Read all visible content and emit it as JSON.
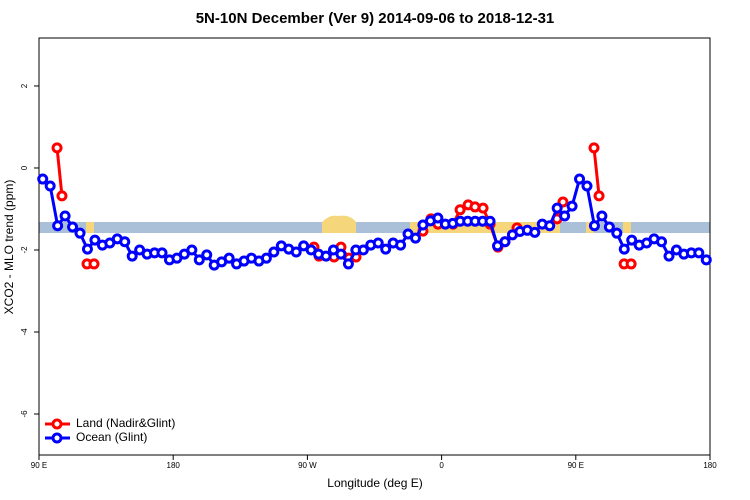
{
  "chart_data": {
    "type": "line",
    "title": "5N-10N December (Ver 9)   2014-09-06 to 2018-12-31",
    "x_label": "Longitude (deg E)",
    "y_label": "XCO2 - MLO trend (ppm)",
    "xlim": [
      90,
      540
    ],
    "xticks": [
      {
        "value": 90,
        "label": "90 E"
      },
      180,
      {
        "value": 270,
        "label": "90 W"
      },
      {
        "value": 360,
        "label": "0"
      },
      {
        "value": 450,
        "label": "90 E"
      },
      {
        "value": 540,
        "label": "180"
      }
    ],
    "ylim": [
      -7,
      3.17
    ],
    "yticks": [
      2,
      0,
      -2,
      -4,
      -6
    ],
    "legend": "bottom-left",
    "series": [
      {
        "name": "Land (Nadir&Glint)",
        "color": "#ff0000",
        "x": [
          102.1,
          105.4,
          null,
          122.2,
          126.9,
          null,
          274.4,
          277.8,
          287.9,
          292.5,
          297.9,
          302.6,
          null,
          347.5,
          352.9,
          357.6,
          367.7,
          372.4,
          377.8,
          382.4,
          387.8,
          392.5,
          397.8,
          402.5,
          410.6,
          null,
          437.4,
          441.4,
          null,
          462.2,
          465.6,
          null,
          482.4,
          487.1
        ],
        "values": [
          0.49,
          -0.68,
          null,
          -2.34,
          -2.34,
          null,
          -1.93,
          -2.15,
          -2.17,
          -1.93,
          -2.2,
          -2.17,
          null,
          -1.54,
          -1.24,
          -1.37,
          -1.37,
          -1.02,
          -0.9,
          -0.95,
          -0.98,
          -1.37,
          -1.93,
          -1.8,
          -1.46,
          null,
          -1.24,
          -0.83,
          null,
          0.49,
          -0.68,
          null,
          -2.34,
          -2.34
        ]
      },
      {
        "name": "Ocean (Glint)",
        "color": "#0000ff",
        "x": [
          92.5,
          97.5,
          102.5,
          107.5,
          112.5,
          117.5,
          122.5,
          127.5,
          132.5,
          137.5,
          142.5,
          147.5,
          152.5,
          157.5,
          162.5,
          167.5,
          172.5,
          177.5,
          182.5,
          187.5,
          192.5,
          197.5,
          202.5,
          207.5,
          212.5,
          217.5,
          222.5,
          227.5,
          232.5,
          237.5,
          242.5,
          247.5,
          252.5,
          257.5,
          262.5,
          267.5,
          272.5,
          277.5,
          282.5,
          287.5,
          292.5,
          297.5,
          302.5,
          307.5,
          312.5,
          317.5,
          322.5,
          327.5,
          332.5,
          337.5,
          342.5,
          347.5,
          352.5,
          357.5,
          362.5,
          367.5,
          372.5,
          377.5,
          382.5,
          387.5,
          392.5,
          397.5,
          402.5,
          407.5,
          412.5,
          417.5,
          422.5,
          427.5,
          432.5,
          437.5,
          442.5,
          447.5,
          452.5,
          457.5,
          462.5,
          467.5,
          472.5,
          477.5,
          482.5,
          487.5,
          492.5,
          497.5,
          502.5,
          507.5,
          512.5,
          517.5,
          522.5,
          527.5,
          532.5,
          537.5
        ],
        "values": [
          -0.27,
          -0.44,
          -1.41,
          -1.17,
          -1.44,
          -1.59,
          -1.98,
          -1.76,
          -1.88,
          -1.83,
          -1.73,
          -1.8,
          -2.15,
          -2.0,
          -2.1,
          -2.07,
          -2.07,
          -2.24,
          -2.2,
          -2.1,
          -2.0,
          -2.24,
          -2.12,
          -2.37,
          -2.29,
          -2.2,
          -2.34,
          -2.27,
          -2.2,
          -2.27,
          -2.2,
          -2.05,
          -1.9,
          -1.98,
          -2.05,
          -1.9,
          -2.0,
          -2.1,
          -2.15,
          -2.0,
          -2.1,
          -2.34,
          -2.0,
          -2.0,
          -1.88,
          -1.83,
          -1.98,
          -1.83,
          -1.88,
          -1.61,
          -1.71,
          -1.39,
          -1.29,
          -1.22,
          -1.37,
          -1.35,
          -1.3,
          -1.3,
          -1.3,
          -1.3,
          -1.3,
          -1.9,
          -1.8,
          -1.63,
          -1.55,
          -1.52,
          -1.57,
          -1.37,
          -1.41,
          -0.98,
          -1.17,
          -0.93,
          -0.27,
          -0.44,
          -1.41,
          -1.17,
          -1.44,
          -1.59,
          -1.98,
          -1.76,
          -1.88,
          -1.83,
          -1.73,
          -1.8,
          -2.15,
          -2.0,
          -2.1,
          -2.07,
          -2.07,
          -2.24
        ]
      }
    ]
  }
}
